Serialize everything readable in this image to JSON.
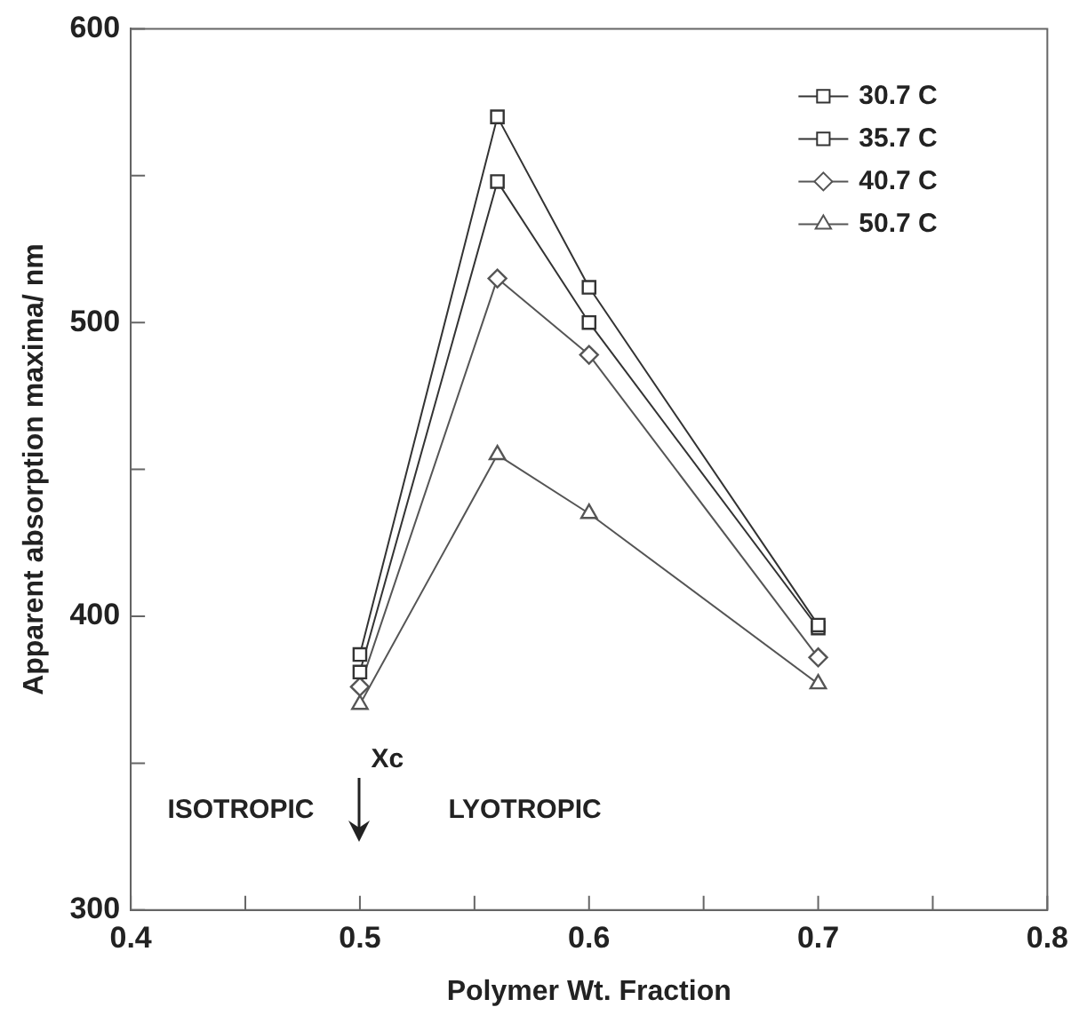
{
  "chart_data": {
    "type": "line",
    "xlabel": "Polymer Wt. Fraction",
    "ylabel": "Apparent absorption maxima/ nm",
    "x": [
      0.5,
      0.56,
      0.6,
      0.7
    ],
    "xlim": [
      0.4,
      0.8
    ],
    "xticks": [
      0.4,
      {
        "value": 0.45,
        "label": null
      },
      0.5,
      {
        "value": 0.55,
        "label": null
      },
      0.6,
      {
        "value": 0.65,
        "label": null
      },
      0.7,
      {
        "value": 0.75,
        "label": null
      },
      0.8
    ],
    "ylim": [
      300,
      600
    ],
    "yticks": [
      300,
      {
        "value": 350,
        "label": null
      },
      400,
      {
        "value": 450,
        "label": null
      },
      500,
      {
        "value": 550,
        "label": null
      },
      600
    ],
    "grid": false,
    "legend": "top right",
    "line_style": "solid",
    "series": [
      {
        "name": "30.7 C",
        "color": "#333333",
        "marker": "square",
        "values": [
          387,
          570,
          512,
          397
        ]
      },
      {
        "name": "35.7 C",
        "color": "#333333",
        "marker": "square",
        "values": [
          381,
          548,
          500,
          396
        ]
      },
      {
        "name": "40.7 C",
        "color": "#555555",
        "marker": "diamond",
        "values": [
          376,
          515,
          489,
          386
        ]
      },
      {
        "name": "50.7 C",
        "color": "#555555",
        "marker": "triangle",
        "values": [
          370,
          455,
          435,
          377
        ]
      }
    ],
    "annotations": [
      "Xc",
      "ISOTROPIC",
      "LYOTROPIC"
    ]
  }
}
